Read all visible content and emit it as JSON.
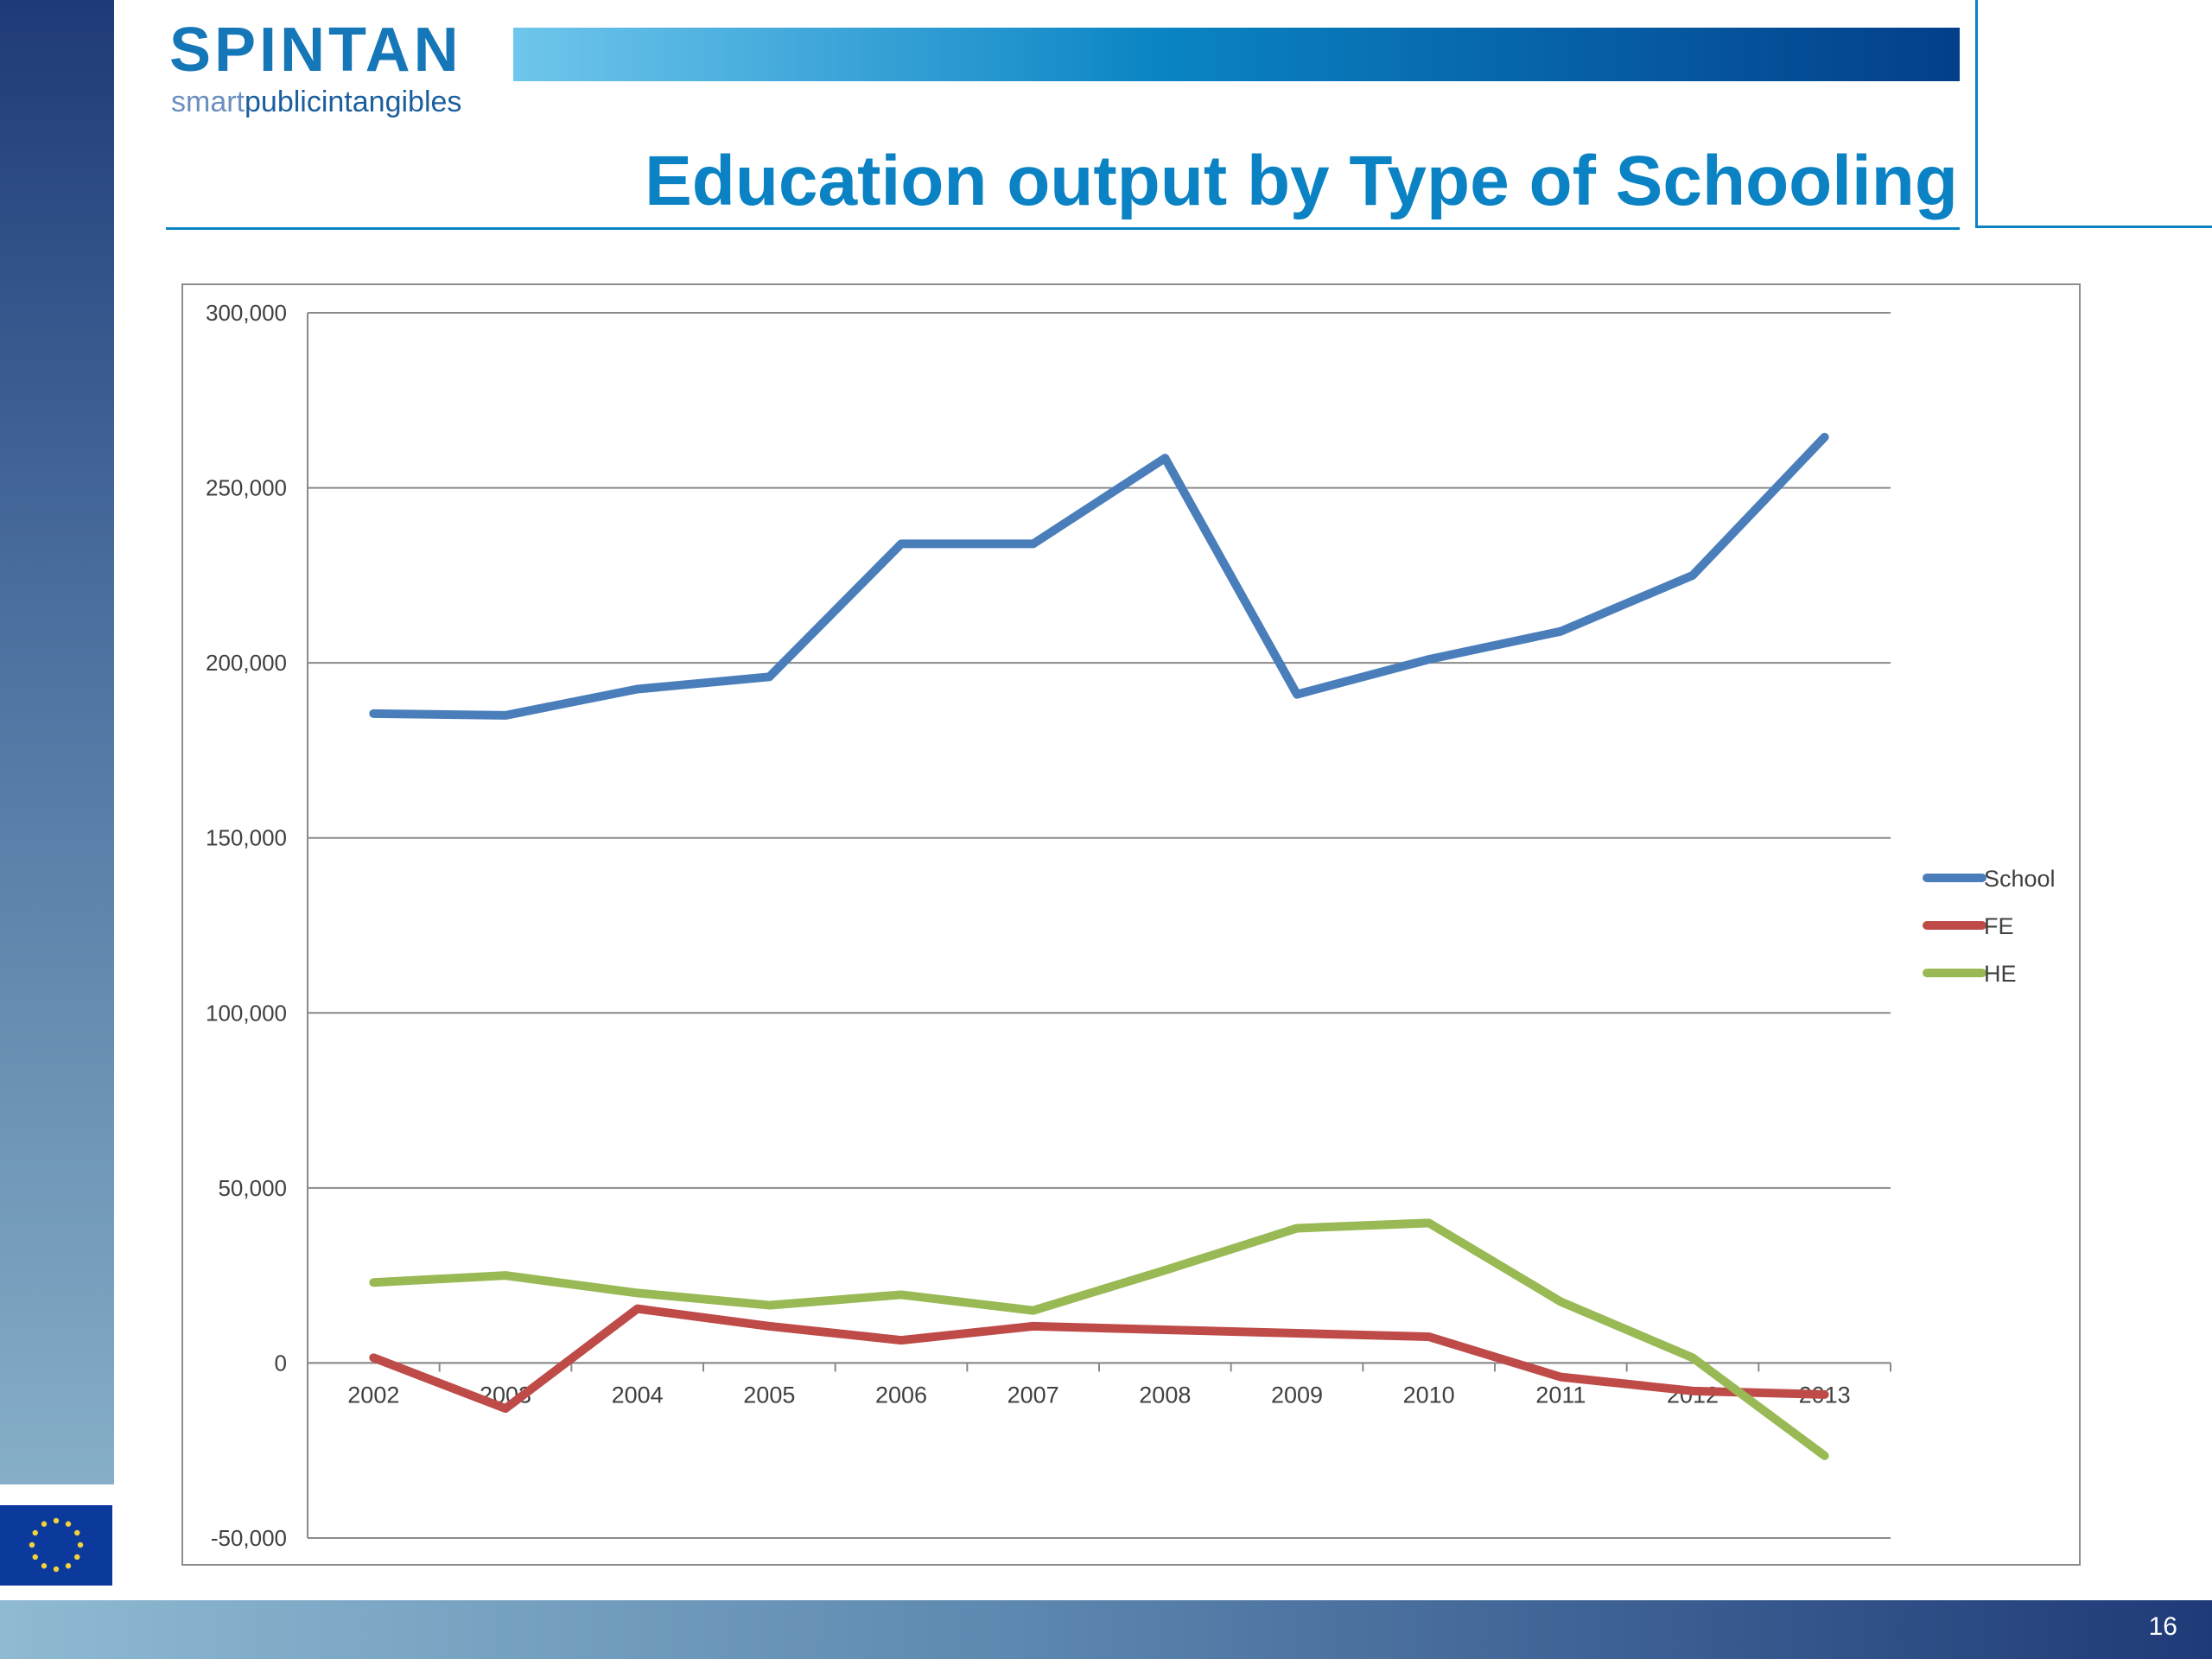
{
  "logo": {
    "main": "SPINTAN",
    "sub_part1": "smart",
    "sub_part2": "public",
    "sub_part3": "intangibles"
  },
  "slide": {
    "title": "Education output by Type of Schooling",
    "page_number": "16"
  },
  "colors": {
    "accent": "#0a82c3",
    "school": "#4a7ebb",
    "fe": "#be4b48",
    "he": "#98b954"
  },
  "chart_data": {
    "type": "line",
    "categories": [
      "2002",
      "2003",
      "2004",
      "2005",
      "2006",
      "2007",
      "2008",
      "2009",
      "2010",
      "2011",
      "2012",
      "2013"
    ],
    "series": [
      {
        "name": "School",
        "color": "#4a7ebb",
        "values": [
          185500,
          185000,
          192500,
          196000,
          234000,
          234000,
          258500,
          191000,
          201000,
          209000,
          225000,
          264500
        ]
      },
      {
        "name": "FE",
        "color": "#be4b48",
        "values": [
          1500,
          -13000,
          15500,
          10500,
          6500,
          10500,
          9500,
          8500,
          7500,
          -4000,
          -8000,
          -9000
        ]
      },
      {
        "name": "HE",
        "color": "#98b954",
        "values": [
          23000,
          25000,
          20000,
          16500,
          19500,
          15000,
          26500,
          38500,
          40000,
          17500,
          1500,
          -26500
        ]
      }
    ],
    "yticks": [
      "300,000",
      "250,000",
      "200,000",
      "150,000",
      "100,000",
      "50,000",
      "0",
      "-50,000"
    ],
    "ytick_values": [
      300000,
      250000,
      200000,
      150000,
      100000,
      50000,
      0,
      -50000
    ],
    "ylim": [
      -50000,
      300000
    ],
    "grid": true,
    "legend_position": "right"
  }
}
